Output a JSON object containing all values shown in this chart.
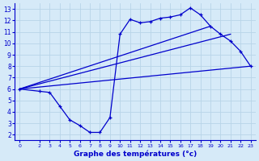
{
  "background_color": "#d6eaf8",
  "grid_color": "#b8d4e8",
  "line_color": "#0000cc",
  "xlabel": "Graphe des températures (°c)",
  "xlim": [
    -0.5,
    23.5
  ],
  "ylim": [
    1.5,
    13.5
  ],
  "xticks": [
    0,
    2,
    3,
    4,
    5,
    6,
    7,
    8,
    9,
    10,
    11,
    12,
    13,
    14,
    15,
    16,
    17,
    18,
    19,
    20,
    21,
    22,
    23
  ],
  "yticks": [
    2,
    3,
    4,
    5,
    6,
    7,
    8,
    9,
    10,
    11,
    12,
    13
  ],
  "series1_x": [
    0,
    2,
    3,
    4,
    5,
    6,
    7,
    8,
    9,
    10,
    11,
    12,
    13,
    14,
    15,
    16,
    17,
    18,
    19,
    20,
    21,
    22,
    23
  ],
  "series1_y": [
    6.0,
    5.8,
    5.7,
    4.5,
    3.3,
    2.8,
    2.2,
    2.2,
    3.5,
    10.8,
    12.1,
    11.8,
    11.9,
    12.2,
    12.3,
    12.5,
    13.1,
    12.5,
    11.5,
    10.8,
    10.2,
    9.3,
    8.0
  ],
  "series2_x": [
    0,
    23
  ],
  "series2_y": [
    6.0,
    8.0
  ],
  "series3_x": [
    0,
    21
  ],
  "series3_y": [
    6.0,
    10.8
  ],
  "series4_x": [
    0,
    19
  ],
  "series4_y": [
    6.0,
    11.5
  ]
}
